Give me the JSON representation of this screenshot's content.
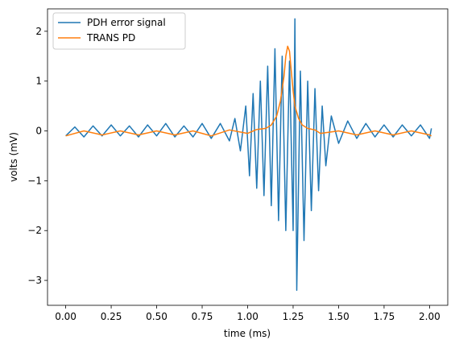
{
  "chart_data": {
    "type": "line",
    "xlabel": "time (ms)",
    "ylabel": "volts (mV)",
    "xlim": [
      -0.1,
      2.1
    ],
    "ylim": [
      -3.5,
      2.45
    ],
    "x_ticks": [
      0.0,
      0.25,
      0.5,
      0.75,
      1.0,
      1.25,
      1.5,
      1.75,
      2.0
    ],
    "x_tick_labels": [
      "0.00",
      "0.25",
      "0.50",
      "0.75",
      "1.00",
      "1.25",
      "1.50",
      "1.75",
      "2.00"
    ],
    "y_ticks": [
      -3,
      -2,
      -1,
      0,
      1,
      2
    ],
    "y_tick_labels": [
      "−3",
      "−2",
      "−1",
      "0",
      "1",
      "2"
    ],
    "grid": false,
    "legend_position": "top-left",
    "series": [
      {
        "name": "PDH error signal",
        "color": "#1f77b4",
        "x": [
          0.0,
          0.05,
          0.1,
          0.15,
          0.2,
          0.25,
          0.3,
          0.35,
          0.4,
          0.45,
          0.5,
          0.55,
          0.6,
          0.65,
          0.7,
          0.75,
          0.8,
          0.85,
          0.9,
          0.93,
          0.96,
          0.99,
          1.01,
          1.03,
          1.05,
          1.07,
          1.09,
          1.11,
          1.13,
          1.15,
          1.17,
          1.19,
          1.21,
          1.23,
          1.25,
          1.26,
          1.27,
          1.29,
          1.31,
          1.33,
          1.35,
          1.37,
          1.39,
          1.41,
          1.43,
          1.46,
          1.5,
          1.55,
          1.6,
          1.65,
          1.7,
          1.75,
          1.8,
          1.85,
          1.9,
          1.95,
          2.0,
          2.01
        ],
        "y": [
          -0.1,
          0.08,
          -0.12,
          0.1,
          -0.1,
          0.12,
          -0.1,
          0.1,
          -0.12,
          0.12,
          -0.1,
          0.15,
          -0.12,
          0.1,
          -0.12,
          0.15,
          -0.15,
          0.15,
          -0.2,
          0.25,
          -0.4,
          0.5,
          -0.9,
          0.75,
          -1.15,
          1.0,
          -1.3,
          1.3,
          -1.5,
          1.65,
          -1.8,
          1.5,
          -2.0,
          1.4,
          -2.0,
          2.25,
          -3.2,
          1.2,
          -2.2,
          1.0,
          -1.6,
          0.85,
          -1.2,
          0.5,
          -0.7,
          0.3,
          -0.25,
          0.2,
          -0.15,
          0.15,
          -0.12,
          0.12,
          -0.12,
          0.12,
          -0.1,
          0.12,
          -0.15,
          0.05
        ]
      },
      {
        "name": "TRANS PD",
        "color": "#ff7f0e",
        "x": [
          0.0,
          0.1,
          0.2,
          0.3,
          0.4,
          0.5,
          0.6,
          0.7,
          0.8,
          0.9,
          1.0,
          1.05,
          1.1,
          1.13,
          1.16,
          1.18,
          1.2,
          1.21,
          1.22,
          1.23,
          1.24,
          1.25,
          1.26,
          1.28,
          1.3,
          1.33,
          1.37,
          1.4,
          1.5,
          1.6,
          1.7,
          1.8,
          1.9,
          2.0,
          2.01
        ],
        "y": [
          -0.1,
          0.0,
          -0.08,
          0.0,
          -0.08,
          0.0,
          -0.08,
          0.0,
          -0.1,
          0.02,
          -0.05,
          0.03,
          0.05,
          0.12,
          0.3,
          0.6,
          1.1,
          1.5,
          1.7,
          1.6,
          1.2,
          0.8,
          0.5,
          0.25,
          0.12,
          0.05,
          0.02,
          -0.05,
          0.0,
          -0.08,
          0.0,
          -0.08,
          0.0,
          -0.08,
          -0.1
        ]
      }
    ]
  }
}
